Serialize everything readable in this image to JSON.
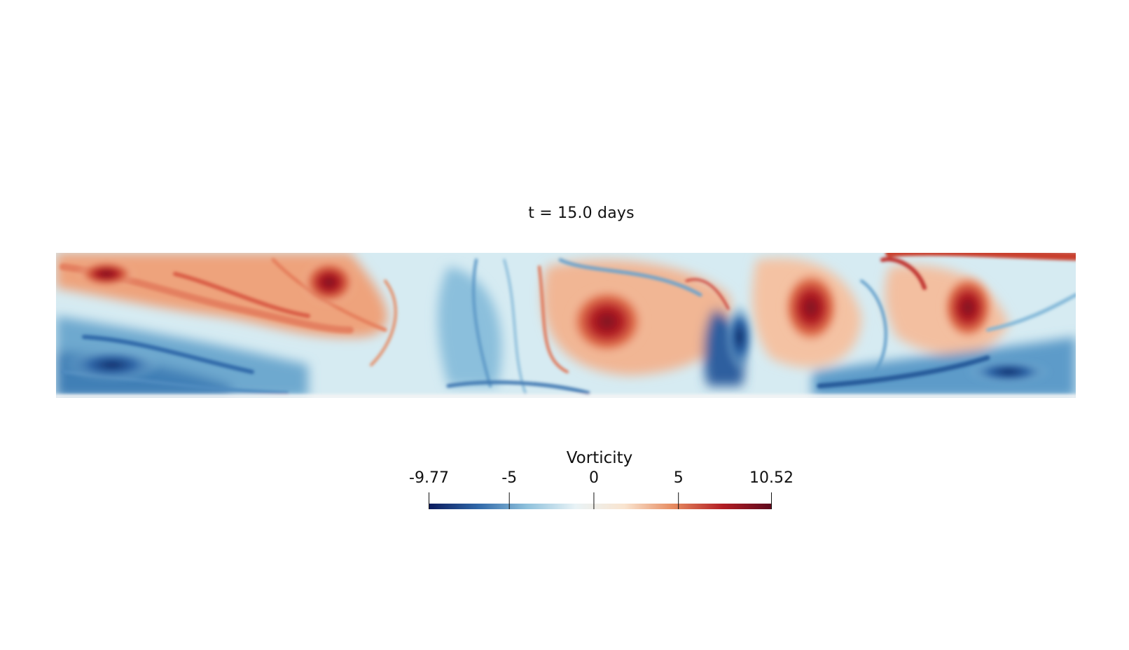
{
  "title": "t = 15.0 days",
  "scalar_field": {
    "name": "Vorticity",
    "colormap": "RdBu reversed (diverging)",
    "colors": [
      "#0a1a5c",
      "#2f67a8",
      "#8ec1dc",
      "#e9f3f6",
      "#f9e4cf",
      "#e68a5f",
      "#b21d24",
      "#5e0a1e"
    ],
    "range": [
      -9.77,
      10.52
    ]
  },
  "colorbar": {
    "title": "Vorticity",
    "ticks": [
      {
        "value": -9.77,
        "label": "-9.77"
      },
      {
        "value": -5,
        "label": "-5"
      },
      {
        "value": 0,
        "label": "0"
      },
      {
        "value": 5,
        "label": "5"
      },
      {
        "value": 10.52,
        "label": "10.52"
      }
    ]
  }
}
